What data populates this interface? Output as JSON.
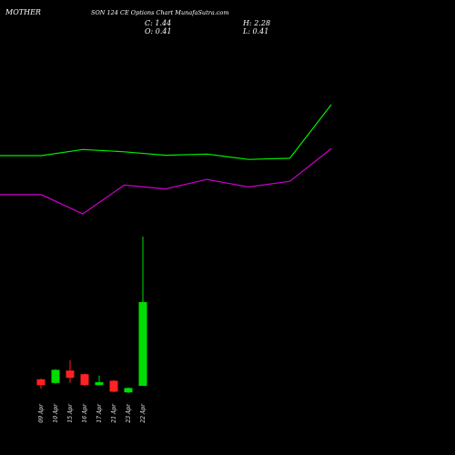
{
  "header": {
    "symbol": "MOTHER",
    "title": "SON 124 CE Options Chart MunafaSutra.com",
    "close": "C: 1.44",
    "open": "O: 0.41",
    "high": "H: 2.28",
    "low": "L: 0.41"
  },
  "colors": {
    "background": "#000000",
    "bullish": "#00dd00",
    "bearish": "#ff2222",
    "ema_fast": "#00ee00",
    "ema_slow": "#cc00cc",
    "text": "#ffffff"
  },
  "chart_data": [
    {
      "type": "line",
      "x": [
        "1",
        "2",
        "3",
        "4",
        "5",
        "6",
        "7",
        "8",
        "9"
      ],
      "series": [
        {
          "values": [
            0.42,
            0.42,
            0.58,
            0.52,
            0.43,
            0.46,
            0.32,
            0.35,
            1.75
          ]
        },
        {
          "values": [
            -0.6,
            -0.6,
            -1.1,
            -0.35,
            -0.45,
            -0.2,
            -0.4,
            -0.25,
            0.6
          ]
        }
      ]
    },
    {
      "type": "candlestick",
      "categories": [
        "09 Apr",
        "10 Apr",
        "15 Apr",
        "16 Apr",
        "17 Apr",
        "21 Apr",
        "23 Apr",
        "22 Apr"
      ],
      "open": [
        0.1,
        0.05,
        0.22,
        0.17,
        0.02,
        0.08,
        -0.08,
        0.01
      ],
      "close": [
        0.02,
        0.23,
        0.12,
        0.02,
        0.06,
        -0.07,
        -0.02,
        1.16
      ],
      "high": [
        0.11,
        0.24,
        0.36,
        0.18,
        0.15,
        0.09,
        -0.01,
        2.06
      ],
      "low": [
        -0.03,
        0.04,
        0.05,
        0.01,
        0.02,
        -0.08,
        -0.09,
        0.01
      ]
    }
  ]
}
